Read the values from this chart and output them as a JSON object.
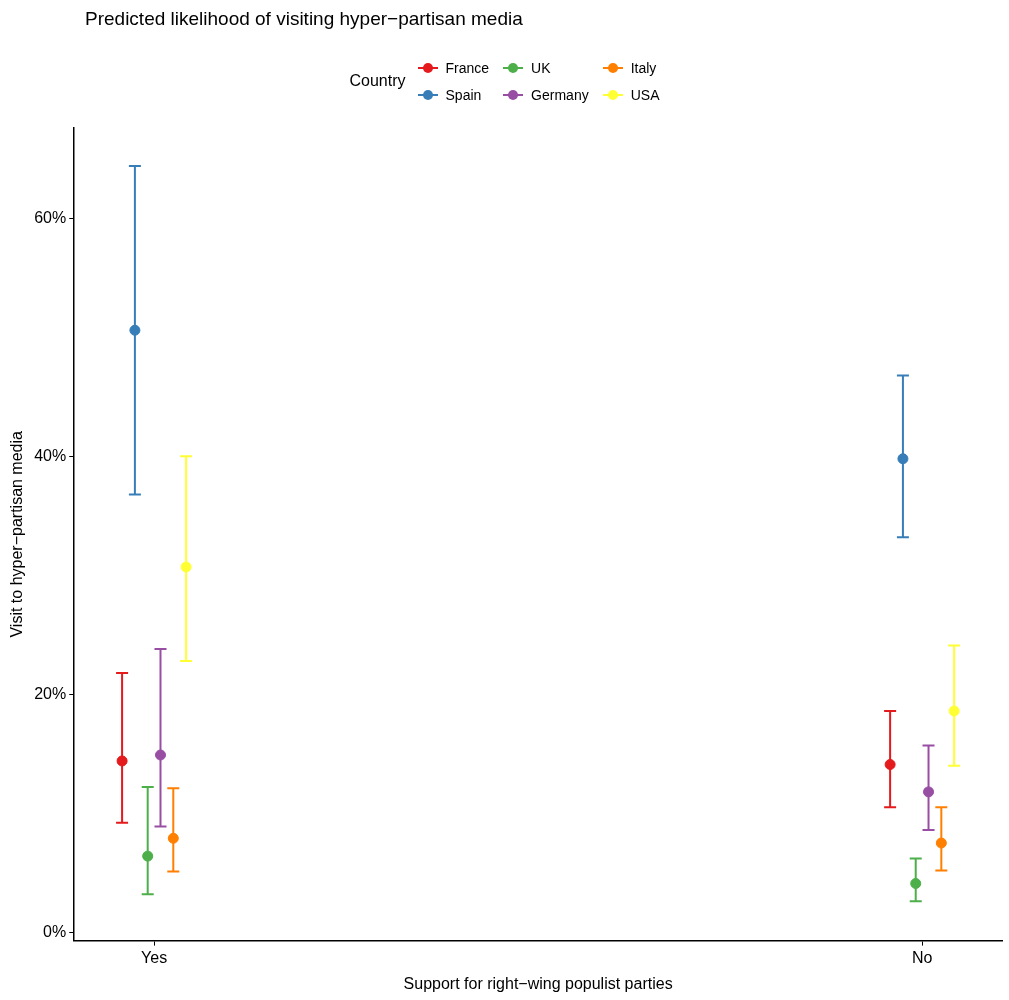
{
  "chart_data": {
    "type": "scatter",
    "title": "Predicted likelihood of visiting hyper−partisan media",
    "xlabel": "Support for right−wing populist parties",
    "ylabel": "Visit to hyper−partisan media",
    "legend_title": "Country",
    "categories": [
      "Yes",
      "No"
    ],
    "series": [
      {
        "name": "France",
        "color": "#e41a1c",
        "values": [
          14.4,
          14.1
        ],
        "errors": [
          [
            9.2,
            21.8
          ],
          [
            10.5,
            18.6
          ]
        ]
      },
      {
        "name": "Spain",
        "color": "#377eb8",
        "values": [
          50.6,
          39.8
        ],
        "errors": [
          [
            36.8,
            64.4
          ],
          [
            33.2,
            46.8
          ]
        ]
      },
      {
        "name": "UK",
        "color": "#4daf4a",
        "values": [
          6.4,
          4.1
        ],
        "errors": [
          [
            3.2,
            12.2
          ],
          [
            2.6,
            6.2
          ]
        ]
      },
      {
        "name": "Germany",
        "color": "#984ea3",
        "values": [
          14.9,
          11.8
        ],
        "errors": [
          [
            8.9,
            23.8
          ],
          [
            8.6,
            15.7
          ]
        ]
      },
      {
        "name": "Italy",
        "color": "#ff7f00",
        "values": [
          7.9,
          7.5
        ],
        "errors": [
          [
            5.1,
            12.1
          ],
          [
            5.2,
            10.5
          ]
        ]
      },
      {
        "name": "USA",
        "color": "#ffff33",
        "values": [
          30.7,
          18.6
        ],
        "errors": [
          [
            22.8,
            40.0
          ],
          [
            14.0,
            24.1
          ]
        ]
      }
    ],
    "ylim": [
      -0.7,
      67.6
    ],
    "yticks": [
      {
        "value": 0,
        "label": "0%"
      },
      {
        "value": 20,
        "label": "20%"
      },
      {
        "value": 40,
        "label": "40%"
      },
      {
        "value": 60,
        "label": "60%"
      }
    ],
    "grid": false,
    "legend": "top",
    "marker": "circle"
  }
}
